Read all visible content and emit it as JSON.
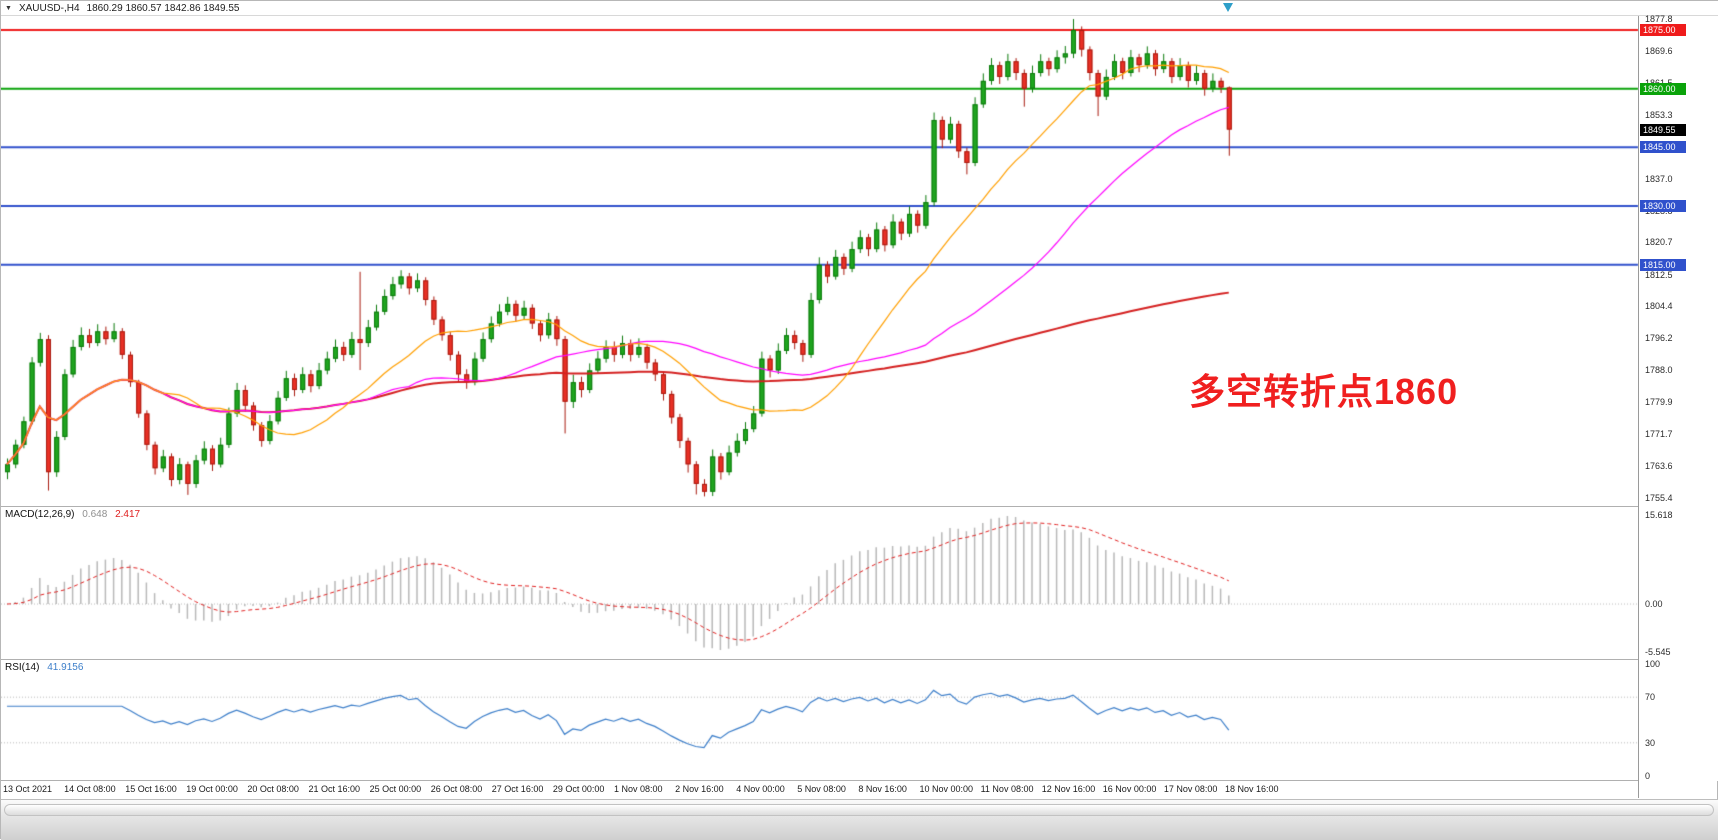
{
  "window": {
    "symbol_period": "XAUUSD-,H4",
    "ohlc_line": "1860.29 1860.57 1842.86 1849.55"
  },
  "chart_data": {
    "type": "candlestick",
    "symbol": "XAUUSD-",
    "timeframe": "H4",
    "ohlc_current": {
      "open": 1860.29,
      "high": 1860.57,
      "low": 1842.86,
      "close": 1849.55
    },
    "candle_format": [
      "open",
      "high",
      "low",
      "close"
    ],
    "candles": [
      [
        1762.0,
        1765.5,
        1760.2,
        1764.0
      ],
      [
        1764.0,
        1770.3,
        1763.0,
        1769.0
      ],
      [
        1769.0,
        1776.2,
        1768.1,
        1775.0
      ],
      [
        1775.0,
        1791.4,
        1774.2,
        1790.0
      ],
      [
        1790.0,
        1797.6,
        1789.0,
        1796.0
      ],
      [
        1796.0,
        1797.0,
        1757.3,
        1762.0
      ],
      [
        1762.0,
        1772.5,
        1760.8,
        1771.0
      ],
      [
        1771.0,
        1788.3,
        1770.2,
        1787.0
      ],
      [
        1787.0,
        1795.8,
        1786.2,
        1794.0
      ],
      [
        1794.0,
        1799.0,
        1793.1,
        1797.0
      ],
      [
        1797.0,
        1798.6,
        1793.8,
        1795.0
      ],
      [
        1795.0,
        1799.8,
        1794.2,
        1798.0
      ],
      [
        1798.0,
        1799.2,
        1794.6,
        1796.0
      ],
      [
        1796.0,
        1800.1,
        1795.2,
        1798.0
      ],
      [
        1798.0,
        1798.8,
        1790.9,
        1792.0
      ],
      [
        1792.0,
        1792.8,
        1783.8,
        1785.0
      ],
      [
        1785.0,
        1785.6,
        1775.9,
        1777.0
      ],
      [
        1777.0,
        1777.8,
        1767.6,
        1769.0
      ],
      [
        1769.0,
        1769.8,
        1761.4,
        1763.0
      ],
      [
        1763.0,
        1767.7,
        1762.0,
        1766.0
      ],
      [
        1766.0,
        1766.8,
        1758.4,
        1760.0
      ],
      [
        1760.0,
        1765.6,
        1758.9,
        1764.0
      ],
      [
        1764.0,
        1764.7,
        1756.2,
        1759.0
      ],
      [
        1759.0,
        1766.4,
        1758.0,
        1765.0
      ],
      [
        1765.0,
        1769.9,
        1764.0,
        1768.0
      ],
      [
        1768.0,
        1768.9,
        1762.3,
        1764.0
      ],
      [
        1764.0,
        1770.8,
        1763.2,
        1769.0
      ],
      [
        1769.0,
        1778.5,
        1768.2,
        1777.0
      ],
      [
        1777.0,
        1784.8,
        1776.1,
        1783.0
      ],
      [
        1783.0,
        1784.2,
        1777.5,
        1779.0
      ],
      [
        1779.0,
        1779.9,
        1772.6,
        1774.0
      ],
      [
        1774.0,
        1774.8,
        1768.5,
        1770.0
      ],
      [
        1770.0,
        1776.6,
        1769.1,
        1775.0
      ],
      [
        1775.0,
        1782.7,
        1774.2,
        1781.0
      ],
      [
        1781.0,
        1787.9,
        1780.2,
        1786.0
      ],
      [
        1786.0,
        1787.2,
        1781.4,
        1783.0
      ],
      [
        1783.0,
        1788.8,
        1782.2,
        1787.0
      ],
      [
        1787.0,
        1788.1,
        1782.4,
        1784.0
      ],
      [
        1784.0,
        1789.9,
        1783.2,
        1788.0
      ],
      [
        1788.0,
        1792.8,
        1787.0,
        1791.0
      ],
      [
        1791.0,
        1795.9,
        1790.1,
        1794.0
      ],
      [
        1794.0,
        1795.3,
        1790.4,
        1792.0
      ],
      [
        1792.0,
        1797.8,
        1791.2,
        1796.0
      ],
      [
        1796.0,
        1813.2,
        1788.1,
        1795.0
      ],
      [
        1795.0,
        1800.9,
        1794.0,
        1799.0
      ],
      [
        1799.0,
        1804.8,
        1798.2,
        1803.0
      ],
      [
        1803.0,
        1808.7,
        1802.2,
        1807.0
      ],
      [
        1807.0,
        1811.9,
        1806.1,
        1810.0
      ],
      [
        1810.0,
        1813.6,
        1808.9,
        1812.0
      ],
      [
        1812.0,
        1812.9,
        1807.4,
        1809.0
      ],
      [
        1809.0,
        1812.8,
        1808.0,
        1811.0
      ],
      [
        1811.0,
        1811.8,
        1804.6,
        1806.0
      ],
      [
        1806.0,
        1806.9,
        1799.6,
        1801.0
      ],
      [
        1801.0,
        1801.8,
        1795.6,
        1797.0
      ],
      [
        1797.0,
        1797.8,
        1790.5,
        1792.0
      ],
      [
        1792.0,
        1792.9,
        1785.3,
        1787.0
      ],
      [
        1787.0,
        1788.3,
        1783.3,
        1785.0
      ],
      [
        1785.0,
        1792.6,
        1784.2,
        1791.0
      ],
      [
        1791.0,
        1797.7,
        1790.2,
        1796.0
      ],
      [
        1796.0,
        1801.8,
        1795.1,
        1800.0
      ],
      [
        1800.0,
        1804.9,
        1799.2,
        1803.0
      ],
      [
        1803.0,
        1806.8,
        1802.1,
        1805.0
      ],
      [
        1805.0,
        1805.9,
        1800.4,
        1802.0
      ],
      [
        1802.0,
        1805.8,
        1801.0,
        1804.0
      ],
      [
        1804.0,
        1804.9,
        1798.6,
        1800.0
      ],
      [
        1800.0,
        1800.8,
        1795.4,
        1797.0
      ],
      [
        1797.0,
        1802.7,
        1796.1,
        1801.0
      ],
      [
        1801.0,
        1801.9,
        1794.3,
        1796.0
      ],
      [
        1796.0,
        1796.8,
        1771.9,
        1780.0
      ],
      [
        1780.0,
        1786.9,
        1778.4,
        1785.0
      ],
      [
        1785.0,
        1786.4,
        1781.1,
        1783.0
      ],
      [
        1783.0,
        1789.8,
        1782.2,
        1788.0
      ],
      [
        1788.0,
        1792.9,
        1787.1,
        1791.0
      ],
      [
        1791.0,
        1795.7,
        1790.0,
        1794.0
      ],
      [
        1794.0,
        1795.4,
        1790.2,
        1792.0
      ],
      [
        1792.0,
        1796.9,
        1791.1,
        1795.0
      ],
      [
        1795.0,
        1795.9,
        1790.3,
        1792.0
      ],
      [
        1792.0,
        1796.2,
        1791.2,
        1794.0
      ],
      [
        1794.0,
        1794.8,
        1788.4,
        1790.0
      ],
      [
        1790.0,
        1790.9,
        1785.3,
        1787.0
      ],
      [
        1787.0,
        1787.8,
        1780.3,
        1782.0
      ],
      [
        1782.0,
        1782.8,
        1774.4,
        1776.0
      ],
      [
        1776.0,
        1776.9,
        1768.2,
        1770.0
      ],
      [
        1770.0,
        1770.8,
        1761.9,
        1764.0
      ],
      [
        1764.0,
        1764.8,
        1756.3,
        1759.0
      ],
      [
        1759.0,
        1760.2,
        1755.8,
        1757.0
      ],
      [
        1757.0,
        1767.8,
        1755.9,
        1766.0
      ],
      [
        1766.0,
        1766.9,
        1760.1,
        1762.0
      ],
      [
        1762.0,
        1768.8,
        1761.2,
        1767.0
      ],
      [
        1767.0,
        1771.9,
        1766.0,
        1770.0
      ],
      [
        1770.0,
        1774.8,
        1769.1,
        1773.0
      ],
      [
        1773.0,
        1778.9,
        1772.2,
        1777.0
      ],
      [
        1777.0,
        1792.8,
        1776.2,
        1791.0
      ],
      [
        1791.0,
        1791.9,
        1786.2,
        1788.0
      ],
      [
        1788.0,
        1794.9,
        1787.1,
        1793.0
      ],
      [
        1793.0,
        1798.8,
        1792.2,
        1797.0
      ],
      [
        1797.0,
        1798.2,
        1793.4,
        1795.0
      ],
      [
        1795.0,
        1795.8,
        1790.2,
        1792.0
      ],
      [
        1792.0,
        1807.8,
        1791.2,
        1806.0
      ],
      [
        1806.0,
        1816.9,
        1805.1,
        1815.0
      ],
      [
        1815.0,
        1815.9,
        1810.3,
        1812.0
      ],
      [
        1812.0,
        1818.8,
        1811.2,
        1817.0
      ],
      [
        1817.0,
        1817.9,
        1812.4,
        1814.0
      ],
      [
        1814.0,
        1820.9,
        1813.1,
        1819.0
      ],
      [
        1819.0,
        1823.8,
        1818.0,
        1822.0
      ],
      [
        1822.0,
        1822.9,
        1817.2,
        1819.0
      ],
      [
        1819.0,
        1825.8,
        1818.2,
        1824.0
      ],
      [
        1824.0,
        1824.9,
        1818.4,
        1820.0
      ],
      [
        1820.0,
        1827.9,
        1819.2,
        1826.0
      ],
      [
        1826.0,
        1826.8,
        1821.3,
        1823.0
      ],
      [
        1823.0,
        1829.9,
        1822.1,
        1828.0
      ],
      [
        1828.0,
        1828.9,
        1823.2,
        1825.0
      ],
      [
        1825.0,
        1832.8,
        1824.2,
        1831.0
      ],
      [
        1831.0,
        1853.9,
        1830.0,
        1852.0
      ],
      [
        1852.0,
        1852.9,
        1844.8,
        1847.0
      ],
      [
        1847.0,
        1852.8,
        1846.0,
        1851.0
      ],
      [
        1851.0,
        1851.8,
        1842.3,
        1844.0
      ],
      [
        1844.0,
        1844.9,
        1838.1,
        1841.0
      ],
      [
        1841.0,
        1857.8,
        1840.2,
        1856.0
      ],
      [
        1856.0,
        1863.9,
        1855.1,
        1862.0
      ],
      [
        1862.0,
        1867.8,
        1861.0,
        1866.0
      ],
      [
        1866.0,
        1866.9,
        1861.2,
        1863.0
      ],
      [
        1863.0,
        1868.9,
        1862.1,
        1867.0
      ],
      [
        1867.0,
        1867.8,
        1862.2,
        1864.0
      ],
      [
        1864.0,
        1864.9,
        1855.4,
        1860.0
      ],
      [
        1860.0,
        1865.9,
        1859.0,
        1864.0
      ],
      [
        1864.0,
        1868.8,
        1863.1,
        1867.0
      ],
      [
        1867.0,
        1867.9,
        1863.3,
        1865.0
      ],
      [
        1865.0,
        1869.8,
        1864.1,
        1868.0
      ],
      [
        1868.0,
        1870.9,
        1866.4,
        1869.0
      ],
      [
        1869.0,
        1877.8,
        1867.8,
        1875.0
      ],
      [
        1875.0,
        1875.9,
        1868.2,
        1870.0
      ],
      [
        1870.0,
        1870.8,
        1862.1,
        1864.0
      ],
      [
        1864.0,
        1864.8,
        1853.0,
        1858.0
      ],
      [
        1858.0,
        1864.9,
        1857.1,
        1863.0
      ],
      [
        1863.0,
        1868.8,
        1862.2,
        1867.0
      ],
      [
        1867.0,
        1867.9,
        1862.4,
        1864.0
      ],
      [
        1864.0,
        1869.9,
        1863.1,
        1868.0
      ],
      [
        1868.0,
        1868.9,
        1864.2,
        1866.0
      ],
      [
        1866.0,
        1870.8,
        1865.1,
        1869.0
      ],
      [
        1869.0,
        1869.9,
        1863.3,
        1865.0
      ],
      [
        1865.0,
        1868.9,
        1864.0,
        1867.0
      ],
      [
        1867.0,
        1867.8,
        1861.4,
        1863.0
      ],
      [
        1863.0,
        1867.8,
        1862.1,
        1866.0
      ],
      [
        1866.0,
        1866.9,
        1860.3,
        1862.0
      ],
      [
        1862.0,
        1865.9,
        1861.0,
        1864.0
      ],
      [
        1864.0,
        1864.8,
        1858.2,
        1860.0
      ],
      [
        1860.0,
        1863.9,
        1859.1,
        1862.0
      ],
      [
        1862.0,
        1862.8,
        1858.9,
        1860.3
      ],
      [
        1860.29,
        1860.57,
        1842.86,
        1849.55
      ]
    ],
    "time_labels": [
      "13 Oct 2021",
      "14 Oct 08:00",
      "15 Oct 16:00",
      "19 Oct 00:00",
      "20 Oct 08:00",
      "21 Oct 16:00",
      "25 Oct 00:00",
      "26 Oct 08:00",
      "27 Oct 16:00",
      "29 Oct 00:00",
      "1 Nov 08:00",
      "2 Nov 16:00",
      "4 Nov 00:00",
      "5 Nov 08:00",
      "8 Nov 16:00",
      "10 Nov 00:00",
      "11 Nov 08:00",
      "12 Nov 16:00",
      "16 Nov 00:00",
      "17 Nov 08:00",
      "18 Nov 16:00"
    ],
    "price_axis": {
      "top": 1877.8,
      "bottom": 1755.4,
      "ticks": [
        "1877.8",
        "1869.6",
        "1861.5",
        "1853.3",
        "1845.2",
        "1837.0",
        "1828.8",
        "1820.7",
        "1812.5",
        "1804.4",
        "1796.2",
        "1788.0",
        "1779.9",
        "1771.7",
        "1763.6",
        "1755.4"
      ]
    },
    "h_lines": [
      {
        "price": 1875.0,
        "label": "1875.00",
        "color": "#ef1b1b"
      },
      {
        "price": 1860.0,
        "label": "1860.00",
        "color": "#0aa30a"
      },
      {
        "price": 1845.0,
        "label": "1845.00",
        "color": "#3051cc"
      },
      {
        "price": 1830.0,
        "label": "1830.00",
        "color": "#3051cc"
      },
      {
        "price": 1815.0,
        "label": "1815.00",
        "color": "#3051cc"
      }
    ],
    "current_price": {
      "value": 1849.55,
      "label": "1849.55",
      "bg": "#000000"
    },
    "moving_averages": [
      {
        "name": "ma-slow",
        "period": 150,
        "color": "#d42020",
        "width": 2
      },
      {
        "name": "ma-mid",
        "period": 45,
        "color": "#ff00ff",
        "width": 1.2
      },
      {
        "name": "ma-fast",
        "period": 20,
        "color": "#ff9f00",
        "width": 1.2
      }
    ],
    "macd": {
      "label": "MACD(12,26,9)",
      "value_main": "0.648",
      "value_signal": "2.417",
      "value_main_color": "#8f8f8f",
      "fast": 12,
      "slow": 26,
      "signal": 9,
      "axis": [
        "15.618",
        "0.00",
        "-5.545"
      ],
      "hist_color": "#b8b8b8",
      "signal_color": "#e02020"
    },
    "rsi": {
      "label": "RSI(14)",
      "value": "41.9156",
      "period": 14,
      "axis": [
        "100",
        "70",
        "30",
        "0"
      ],
      "levels": [
        70,
        30
      ],
      "color": "#3c7ec9"
    },
    "annotation": {
      "text": "多空转折点1860",
      "color": "#f01f1f"
    },
    "candle_colors": {
      "bull": "#1fa51f",
      "bull_border": "#0c7a0c",
      "bear": "#e93025",
      "bear_border": "#a81b10"
    }
  }
}
